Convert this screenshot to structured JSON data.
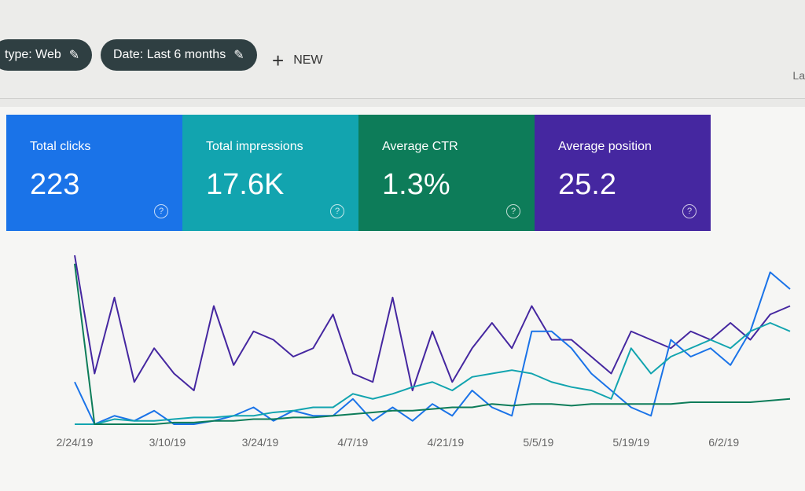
{
  "filters": {
    "chips": [
      {
        "label": "type: Web",
        "icon": "pencil-icon"
      },
      {
        "label": "Date: Last 6 months",
        "icon": "pencil-icon"
      }
    ],
    "new_label": "NEW",
    "right_label": "La"
  },
  "cards": [
    {
      "label": "Total clicks",
      "value": "223",
      "color": "#1a73e8"
    },
    {
      "label": "Total impressions",
      "value": "17.6K",
      "color": "#12a4af"
    },
    {
      "label": "Average CTR",
      "value": "1.3%",
      "color": "#0d7c59"
    },
    {
      "label": "Average position",
      "value": "25.2",
      "color": "#4527a0"
    }
  ],
  "chart_data": {
    "type": "line",
    "grid": false,
    "ylim": [
      0,
      100
    ],
    "x": [
      "2/24/19",
      "2/27/19",
      "3/2/19",
      "3/5/19",
      "3/8/19",
      "3/11/19",
      "3/14/19",
      "3/17/19",
      "3/20/19",
      "3/23/19",
      "3/26/19",
      "3/29/19",
      "4/1/19",
      "4/4/19",
      "4/7/19",
      "4/10/19",
      "4/13/19",
      "4/16/19",
      "4/19/19",
      "4/22/19",
      "4/25/19",
      "4/28/19",
      "5/1/19",
      "5/4/19",
      "5/7/19",
      "5/10/19",
      "5/13/19",
      "5/16/19",
      "5/19/19",
      "5/22/19",
      "5/25/19",
      "5/28/19",
      "5/31/19",
      "6/3/19",
      "6/6/19",
      "6/9/19",
      "6/12/19"
    ],
    "x_ticks": [
      "2/24/19",
      "3/10/19",
      "3/24/19",
      "4/7/19",
      "4/21/19",
      "5/5/19",
      "5/19/19",
      "6/2/19"
    ],
    "series": [
      {
        "name": "Average position",
        "color": "#4527a0",
        "values": [
          100,
          30,
          75,
          25,
          45,
          30,
          20,
          70,
          35,
          55,
          50,
          40,
          45,
          65,
          30,
          25,
          75,
          20,
          55,
          25,
          45,
          60,
          45,
          70,
          50,
          50,
          40,
          30,
          55,
          50,
          45,
          55,
          50,
          60,
          50,
          65,
          70
        ]
      },
      {
        "name": "Total clicks",
        "color": "#1a73e8",
        "values": [
          25,
          0,
          5,
          2,
          8,
          0,
          0,
          2,
          5,
          10,
          2,
          8,
          5,
          5,
          15,
          2,
          10,
          2,
          12,
          5,
          20,
          10,
          5,
          55,
          55,
          45,
          30,
          20,
          10,
          5,
          50,
          40,
          45,
          35,
          55,
          90,
          80
        ]
      },
      {
        "name": "Total impressions",
        "color": "#12a4af",
        "values": [
          0,
          0,
          3,
          2,
          2,
          3,
          4,
          4,
          5,
          5,
          7,
          8,
          10,
          10,
          18,
          15,
          18,
          22,
          25,
          20,
          28,
          30,
          32,
          30,
          25,
          22,
          20,
          15,
          45,
          30,
          40,
          45,
          50,
          45,
          55,
          60,
          55
        ]
      },
      {
        "name": "Average CTR",
        "color": "#0d7c59",
        "values": [
          95,
          0,
          0,
          0,
          0,
          1,
          1,
          2,
          2,
          3,
          3,
          4,
          4,
          5,
          6,
          7,
          8,
          8,
          9,
          10,
          10,
          12,
          11,
          12,
          12,
          11,
          12,
          12,
          12,
          12,
          12,
          13,
          13,
          13,
          13,
          14,
          15
        ]
      }
    ]
  }
}
